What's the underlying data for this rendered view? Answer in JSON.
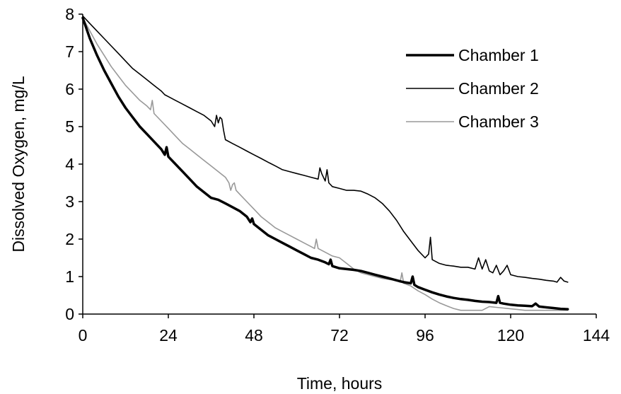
{
  "chart_data": {
    "type": "line",
    "title": "",
    "xlabel": "Time, hours",
    "ylabel": "Dissolved Oxygen, mg/L",
    "xlim": [
      0,
      144
    ],
    "ylim": [
      0,
      8
    ],
    "xticks": [
      0,
      24,
      48,
      72,
      96,
      120,
      144
    ],
    "yticks": [
      0,
      1,
      2,
      3,
      4,
      5,
      6,
      7,
      8
    ],
    "grid": false,
    "legend_position": "top-right",
    "series": [
      {
        "name": "Chamber 1",
        "color": "#000000",
        "style": "thick",
        "x": [
          0,
          2,
          4,
          6,
          8,
          10,
          12,
          14,
          16,
          18,
          20,
          22,
          23,
          23.5,
          24,
          26,
          28,
          30,
          32,
          34,
          36,
          38,
          40,
          42,
          44,
          46,
          47,
          47.5,
          48,
          50,
          52,
          54,
          56,
          58,
          60,
          62,
          64,
          66,
          68,
          69,
          69.5,
          70,
          72,
          74,
          76,
          78,
          80,
          82,
          84,
          86,
          88,
          90,
          92,
          92.5,
          93,
          94,
          96,
          98,
          100,
          102,
          104,
          106,
          108,
          110,
          112,
          114,
          116,
          116.5,
          117,
          118,
          120,
          122,
          124,
          126,
          127,
          128,
          130,
          132,
          134,
          136
        ],
        "y": [
          7.9,
          7.35,
          6.9,
          6.5,
          6.15,
          5.8,
          5.5,
          5.25,
          5.0,
          4.8,
          4.6,
          4.4,
          4.25,
          4.45,
          4.2,
          4.0,
          3.8,
          3.6,
          3.4,
          3.25,
          3.1,
          3.05,
          2.95,
          2.85,
          2.75,
          2.6,
          2.45,
          2.55,
          2.4,
          2.25,
          2.1,
          2.0,
          1.9,
          1.8,
          1.7,
          1.6,
          1.5,
          1.45,
          1.38,
          1.33,
          1.45,
          1.28,
          1.22,
          1.2,
          1.18,
          1.15,
          1.1,
          1.05,
          1.0,
          0.95,
          0.9,
          0.85,
          0.82,
          1.0,
          0.78,
          0.72,
          0.65,
          0.58,
          0.52,
          0.47,
          0.43,
          0.4,
          0.38,
          0.35,
          0.33,
          0.32,
          0.3,
          0.48,
          0.3,
          0.28,
          0.25,
          0.23,
          0.22,
          0.21,
          0.28,
          0.2,
          0.18,
          0.16,
          0.14,
          0.13
        ]
      },
      {
        "name": "Chamber 2",
        "color": "#000000",
        "style": "thin",
        "x": [
          0,
          2,
          4,
          6,
          8,
          10,
          12,
          14,
          16,
          18,
          20,
          22,
          23,
          24,
          26,
          28,
          30,
          32,
          34,
          36,
          37,
          37.5,
          38,
          38.5,
          39,
          39.5,
          40,
          42,
          44,
          46,
          48,
          50,
          52,
          54,
          56,
          58,
          60,
          62,
          64,
          66,
          66.5,
          67,
          68,
          68.5,
          69,
          70,
          72,
          74,
          76,
          78,
          80,
          82,
          84,
          86,
          88,
          90,
          92,
          94,
          96,
          97,
          97.5,
          98,
          100,
          102,
          104,
          106,
          108,
          110,
          111,
          112,
          113,
          114,
          115,
          116,
          117,
          118,
          119,
          120,
          122,
          124,
          126,
          128,
          130,
          132,
          133,
          134,
          135,
          136
        ],
        "y": [
          7.95,
          7.75,
          7.55,
          7.35,
          7.15,
          6.95,
          6.75,
          6.55,
          6.4,
          6.25,
          6.1,
          5.95,
          5.85,
          5.8,
          5.7,
          5.6,
          5.5,
          5.4,
          5.3,
          5.15,
          5.0,
          5.3,
          5.1,
          5.25,
          5.2,
          4.9,
          4.65,
          4.55,
          4.45,
          4.35,
          4.25,
          4.15,
          4.05,
          3.95,
          3.85,
          3.8,
          3.75,
          3.7,
          3.65,
          3.6,
          3.9,
          3.75,
          3.55,
          3.85,
          3.5,
          3.4,
          3.35,
          3.3,
          3.3,
          3.28,
          3.2,
          3.1,
          2.95,
          2.75,
          2.5,
          2.2,
          1.95,
          1.7,
          1.5,
          1.6,
          2.05,
          1.45,
          1.35,
          1.3,
          1.28,
          1.25,
          1.25,
          1.2,
          1.5,
          1.2,
          1.45,
          1.15,
          1.1,
          1.3,
          1.05,
          1.15,
          1.3,
          1.05,
          1.0,
          0.98,
          0.95,
          0.93,
          0.9,
          0.88,
          0.85,
          0.98,
          0.88,
          0.85
        ]
      },
      {
        "name": "Chamber 3",
        "color": "#999999",
        "style": "thin",
        "x": [
          0,
          2,
          4,
          6,
          8,
          10,
          12,
          14,
          16,
          18,
          19,
          19.5,
          20,
          22,
          24,
          26,
          28,
          30,
          32,
          34,
          36,
          38,
          40,
          41,
          41.5,
          42,
          42.5,
          43,
          44,
          46,
          48,
          50,
          52,
          54,
          56,
          58,
          60,
          62,
          64,
          65,
          65.5,
          66,
          68,
          70,
          72,
          74,
          76,
          78,
          80,
          82,
          84,
          86,
          88,
          89,
          89.5,
          90,
          92,
          94,
          96,
          98,
          100,
          102,
          104,
          106,
          108,
          110,
          112,
          114,
          116,
          118,
          120,
          122,
          124,
          126,
          128,
          130,
          132,
          134,
          136
        ],
        "y": [
          7.9,
          7.55,
          7.2,
          6.9,
          6.6,
          6.35,
          6.1,
          5.9,
          5.7,
          5.55,
          5.45,
          5.7,
          5.35,
          5.15,
          4.95,
          4.75,
          4.55,
          4.4,
          4.25,
          4.1,
          3.95,
          3.8,
          3.65,
          3.5,
          3.3,
          3.45,
          3.5,
          3.3,
          3.2,
          3.0,
          2.8,
          2.6,
          2.45,
          2.3,
          2.2,
          2.1,
          2.0,
          1.9,
          1.8,
          1.75,
          2.0,
          1.75,
          1.65,
          1.55,
          1.5,
          1.35,
          1.2,
          1.1,
          1.05,
          1.0,
          0.95,
          0.92,
          0.9,
          0.85,
          1.1,
          0.82,
          0.75,
          0.62,
          0.52,
          0.4,
          0.3,
          0.22,
          0.15,
          0.1,
          0.1,
          0.1,
          0.1,
          0.2,
          0.18,
          0.16,
          0.14,
          0.12,
          0.1,
          0.1,
          0.1,
          0.1,
          0.1,
          0.1,
          0.1
        ]
      }
    ]
  }
}
